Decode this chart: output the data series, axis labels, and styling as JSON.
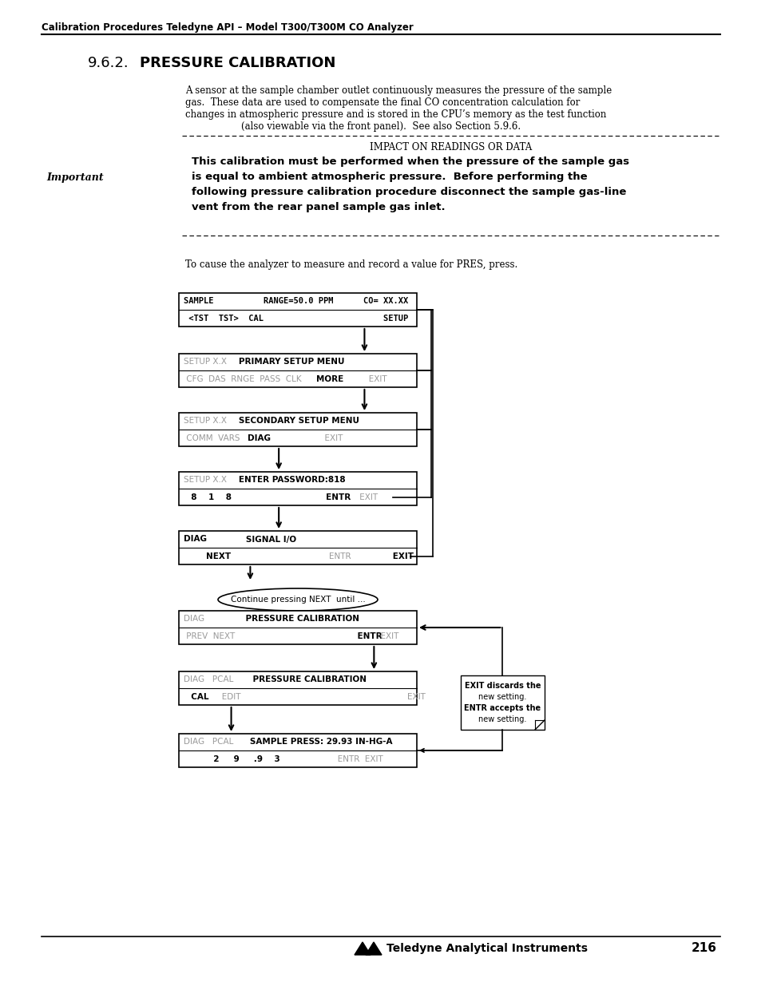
{
  "page_header": "Calibration Procedures Teledyne API – Model T300/T300M CO Analyzer",
  "section_num": "9.6.2.",
  "section_title": "PRESSURE CALIBRATION",
  "body_lines": [
    "A sensor at the sample chamber outlet continuously measures the pressure of the sample",
    "gas.  These data are used to compensate the final CO concentration calculation for",
    "changes in atmospheric pressure and is stored in the CPU’s memory as the test function",
    "(also viewable via the front panel).  See also Section 5.9.6."
  ],
  "important_label": "Important",
  "important_title": "Impact on Readings or Data",
  "important_body_lines": [
    "This calibration must be performed when the pressure of the sample gas",
    "is equal to ambient atmospheric pressure.  Before performing the",
    "following pressure calibration procedure disconnect the sample gas-line",
    "vent from the rear panel sample gas inlet."
  ],
  "instruction": "To cause the analyzer to measure and record a value for PRES, press.",
  "box1_l1": "SAMPLE          RANGE=50.0 PPM      CO= XX.XX",
  "box1_l2": " <TST  TST>  CAL                            SETUP",
  "box2_l1_gray": "SETUP X.X",
  "box2_l1_bold": "    PRIMARY SETUP MENU",
  "box2_l2_gray": " CFG  DAS  RNGE  PASS  CLK ",
  "box2_l2_bold": "MORE",
  "box2_l2_gray2": "           EXIT",
  "box3_l1_gray": "SETUP X.X",
  "box3_l1_bold": "    SECONDARY SETUP MENU",
  "box3_l2_gray": " COMM  VARS  ",
  "box3_l2_bold": "DIAG",
  "box3_l2_gray2": "                      EXIT",
  "box4_l1_gray": "SETUP X.X",
  "box4_l1_bold": "   ENTER PASSWORD:818",
  "box4_l2_bold": "  8    1    8",
  "box4_l2_gray": "                      ENTR EXIT",
  "box5_l1_bold": "DIAG",
  "box5_l1_bold2": "           SIGNAL I/O",
  "box5_l2_bold": "      NEXT",
  "box5_l2_gray": "                    ENTR",
  "box5_l2_bold2": "      EXIT",
  "box6_l1_gray": "DIAG",
  "box6_l1_bold": "            PRESSURE CALIBRATION",
  "box6_l2_gray": " PREV  NEXT",
  "box6_l2_bold": "                    ENTR",
  "box6_l2_gray2": "  EXIT",
  "box7_l1_gray": "DIAG   PCAL",
  "box7_l1_bold": "    PRESSURE CALIBRATION",
  "box7_l2_bold": "  CAL",
  "box7_l2_gray": "   EDIT",
  "box7_l2_gray2": "                               EXIT",
  "box8_l1_gray": "DIAG   PCAL",
  "box8_l1_bold": "   SAMPLE PRESS: 29.93 IN-HG-A",
  "box8_l2_bold": "       2     9     .9    3",
  "box8_l2_gray": "           ENTR  EXIT",
  "oval_text": "Continue pressing NEXT  until ...",
  "note_text_lines": [
    "EXIT discards the",
    "new setting.",
    "ENTR accepts the",
    "new setting."
  ],
  "footer_text": "Teledyne Analytical Instruments",
  "page_num": "216",
  "bg_color": "#ffffff",
  "black": "#000000",
  "gray": "#999999"
}
